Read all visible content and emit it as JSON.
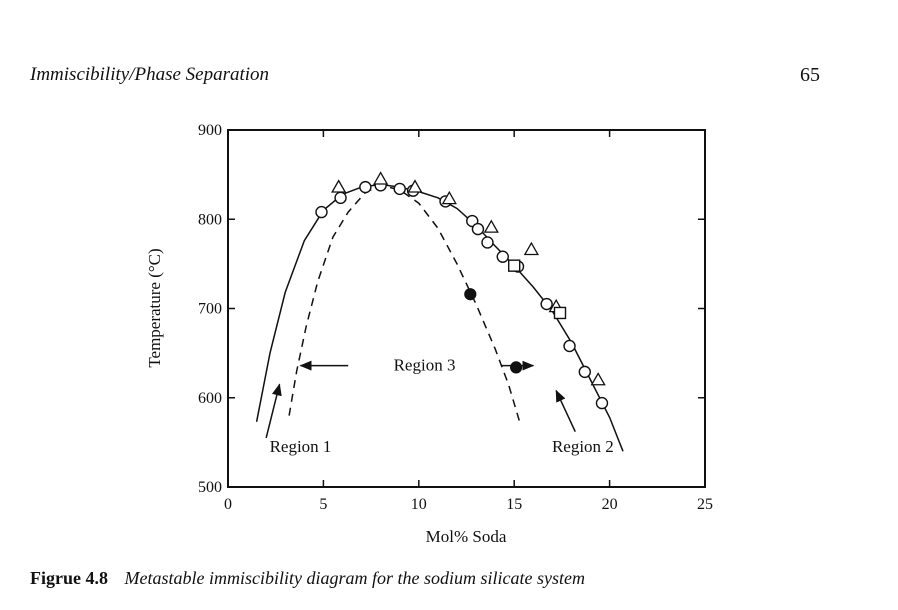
{
  "page": {
    "running_head": "Immiscibility/Phase Separation",
    "page_number": "65"
  },
  "caption": {
    "label": "Figrue 4.8",
    "text": "Metastable immiscibility diagram for the sodium silicate system"
  },
  "chart_data": {
    "type": "scatter",
    "xlabel": "Mol% Soda",
    "ylabel": "Temperature (°C)",
    "xlim": [
      0,
      25
    ],
    "ylim": [
      500,
      900
    ],
    "x_ticks": [
      0,
      5,
      10,
      15,
      20,
      25
    ],
    "y_ticks": [
      500,
      600,
      700,
      800,
      900
    ],
    "grid": false,
    "series": [
      {
        "marker": "open-circle",
        "points": [
          [
            4.9,
            808
          ],
          [
            5.9,
            824
          ],
          [
            7.2,
            836
          ],
          [
            8.0,
            838
          ],
          [
            9.0,
            834
          ],
          [
            9.7,
            832
          ],
          [
            11.4,
            820
          ],
          [
            12.8,
            798
          ],
          [
            13.1,
            789
          ],
          [
            13.6,
            774
          ],
          [
            14.4,
            758
          ],
          [
            15.2,
            747
          ],
          [
            16.7,
            705
          ],
          [
            17.9,
            658
          ],
          [
            18.7,
            629
          ],
          [
            19.6,
            594
          ]
        ]
      },
      {
        "marker": "open-triangle",
        "points": [
          [
            5.8,
            836
          ],
          [
            8.0,
            845
          ],
          [
            9.8,
            836
          ],
          [
            11.6,
            823
          ],
          [
            13.8,
            791
          ],
          [
            15.9,
            766
          ],
          [
            17.2,
            702
          ],
          [
            19.4,
            620
          ]
        ]
      },
      {
        "marker": "open-square",
        "points": [
          [
            15.0,
            748
          ],
          [
            17.4,
            695
          ]
        ]
      },
      {
        "marker": "filled-circle",
        "points": [
          [
            12.7,
            716
          ],
          [
            15.1,
            634
          ]
        ]
      },
      {
        "line": "solid",
        "points": [
          [
            1.5,
            573
          ],
          [
            2.2,
            650
          ],
          [
            3.0,
            718
          ],
          [
            4.0,
            776
          ],
          [
            5.0,
            810
          ],
          [
            6.0,
            828
          ],
          [
            7.0,
            836
          ],
          [
            8.0,
            839
          ],
          [
            9.0,
            836
          ],
          [
            10.0,
            831
          ],
          [
            11.0,
            824
          ],
          [
            12.0,
            812
          ],
          [
            13.0,
            793
          ],
          [
            14.0,
            770
          ],
          [
            15.0,
            748
          ],
          [
            16.0,
            724
          ],
          [
            17.0,
            697
          ],
          [
            18.0,
            662
          ],
          [
            19.0,
            620
          ],
          [
            20.0,
            578
          ],
          [
            20.7,
            540
          ]
        ]
      },
      {
        "line": "dashed",
        "points": [
          [
            3.2,
            580
          ],
          [
            3.6,
            630
          ],
          [
            4.1,
            680
          ],
          [
            4.7,
            730
          ],
          [
            5.5,
            780
          ],
          [
            6.3,
            808
          ],
          [
            7.2,
            830
          ],
          [
            8.0,
            838
          ],
          [
            9.0,
            833
          ],
          [
            10.0,
            818
          ],
          [
            11.0,
            790
          ],
          [
            12.0,
            750
          ],
          [
            13.0,
            705
          ],
          [
            14.0,
            655
          ],
          [
            14.7,
            615
          ],
          [
            15.3,
            572
          ]
        ]
      }
    ],
    "annotations": [
      {
        "text": "Region 1",
        "x": 3.8,
        "y": 545
      },
      {
        "text": "Region 2",
        "x": 18.6,
        "y": 545
      },
      {
        "text": "Region 3",
        "x": 10.3,
        "y": 636
      }
    ]
  }
}
